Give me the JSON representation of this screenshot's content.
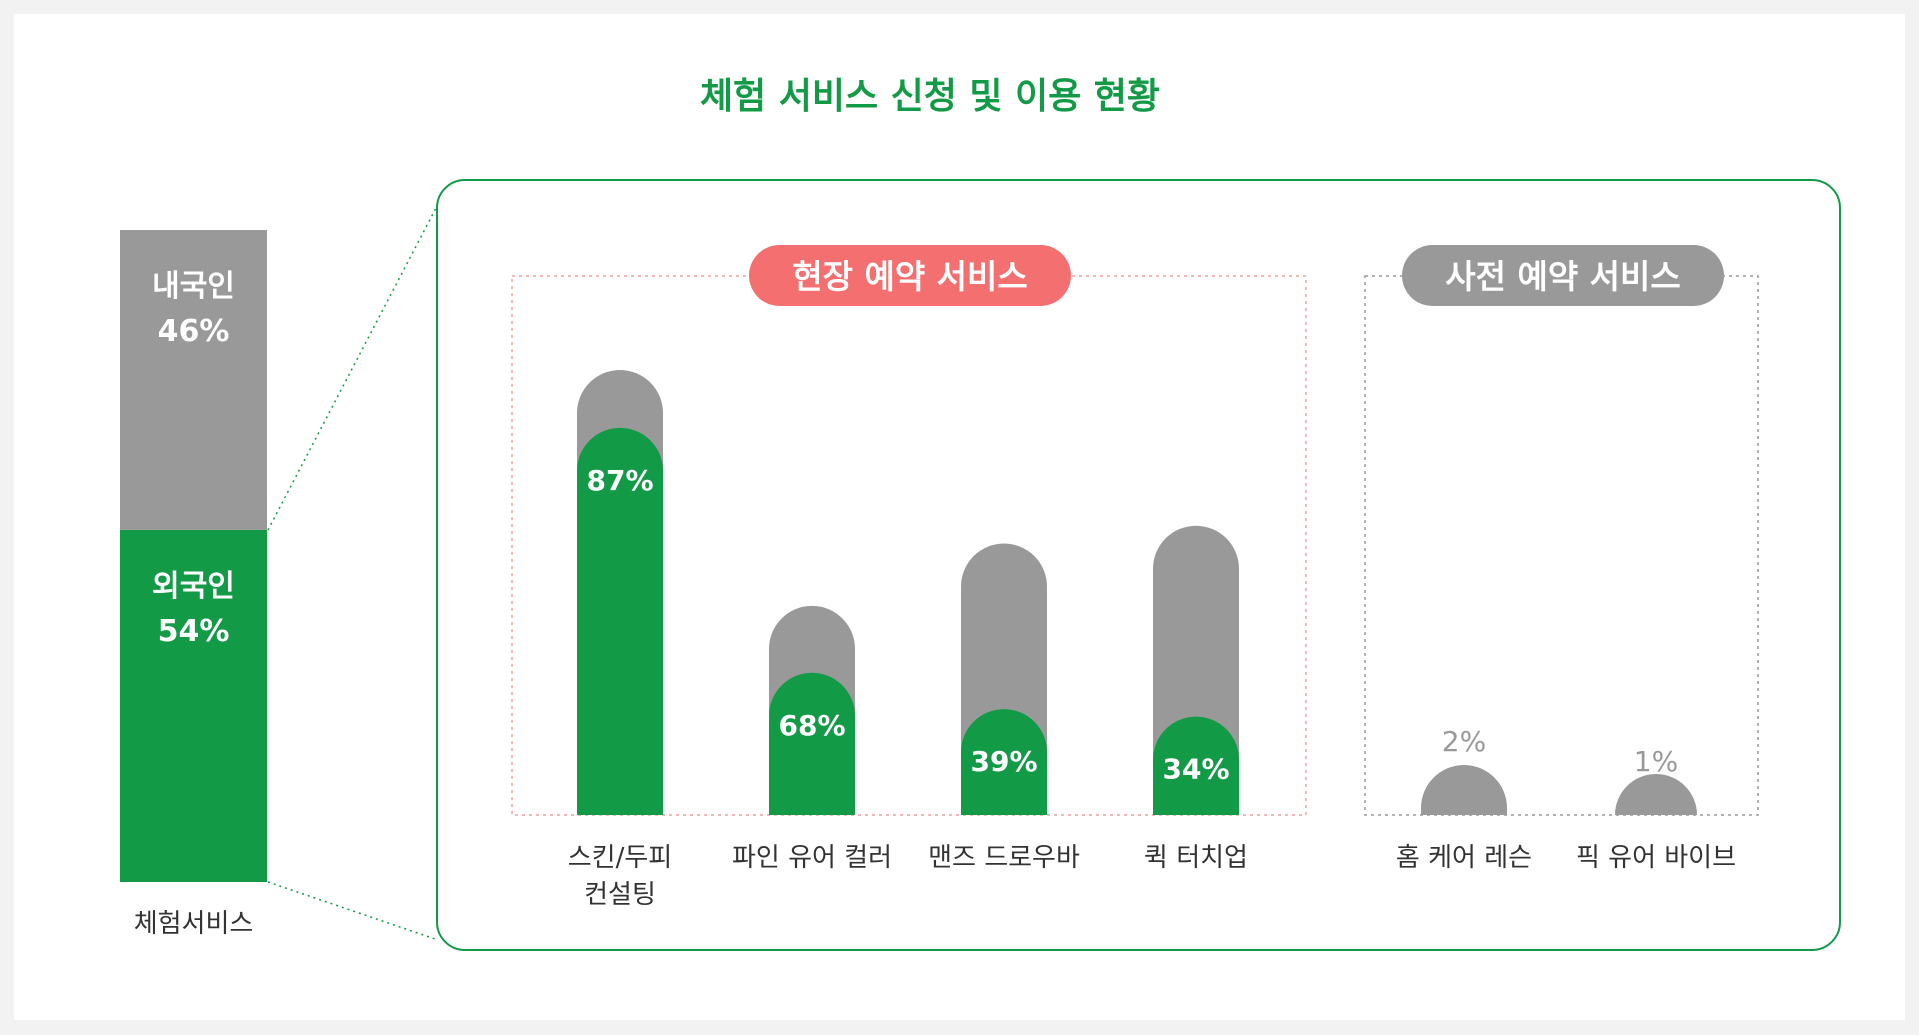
{
  "title": "체험 서비스 신청 및 이용 현황",
  "colors": {
    "green": "#129a47",
    "gray": "#999999",
    "pink": "#f47070",
    "pink_dashed": "#f2a0a0",
    "gray_dashed": "#9a9a9a",
    "text": "#333333",
    "background": "#ffffff",
    "page": "#f2f2f2"
  },
  "chart_data": [
    {
      "type": "bar",
      "name": "stacked-total",
      "category": "체험서비스",
      "series": [
        {
          "label": "외국인",
          "value": 54,
          "value_label": "54%",
          "color": "#129a47"
        },
        {
          "label": "내국인",
          "value": 46,
          "value_label": "46%",
          "color": "#999999"
        }
      ]
    },
    {
      "type": "bar",
      "group": "onsite",
      "title": "현장 예약 서비스",
      "categories": [
        "스킨/두피\n컨설팅",
        "파인 유어 컬러",
        "맨즈 드로우바",
        "퀵 터치업"
      ],
      "totals": [
        100,
        47,
        61,
        65
      ],
      "values": [
        87,
        68,
        39,
        34
      ],
      "value_labels": [
        "87%",
        "68%",
        "39%",
        "34%"
      ]
    },
    {
      "type": "bar",
      "group": "advance",
      "title": "사전 예약 서비스",
      "categories": [
        "홈 케어 레슨",
        "픽 유어 바이브"
      ],
      "values": [
        2,
        1
      ],
      "value_labels": [
        "2%",
        "1%"
      ]
    }
  ]
}
